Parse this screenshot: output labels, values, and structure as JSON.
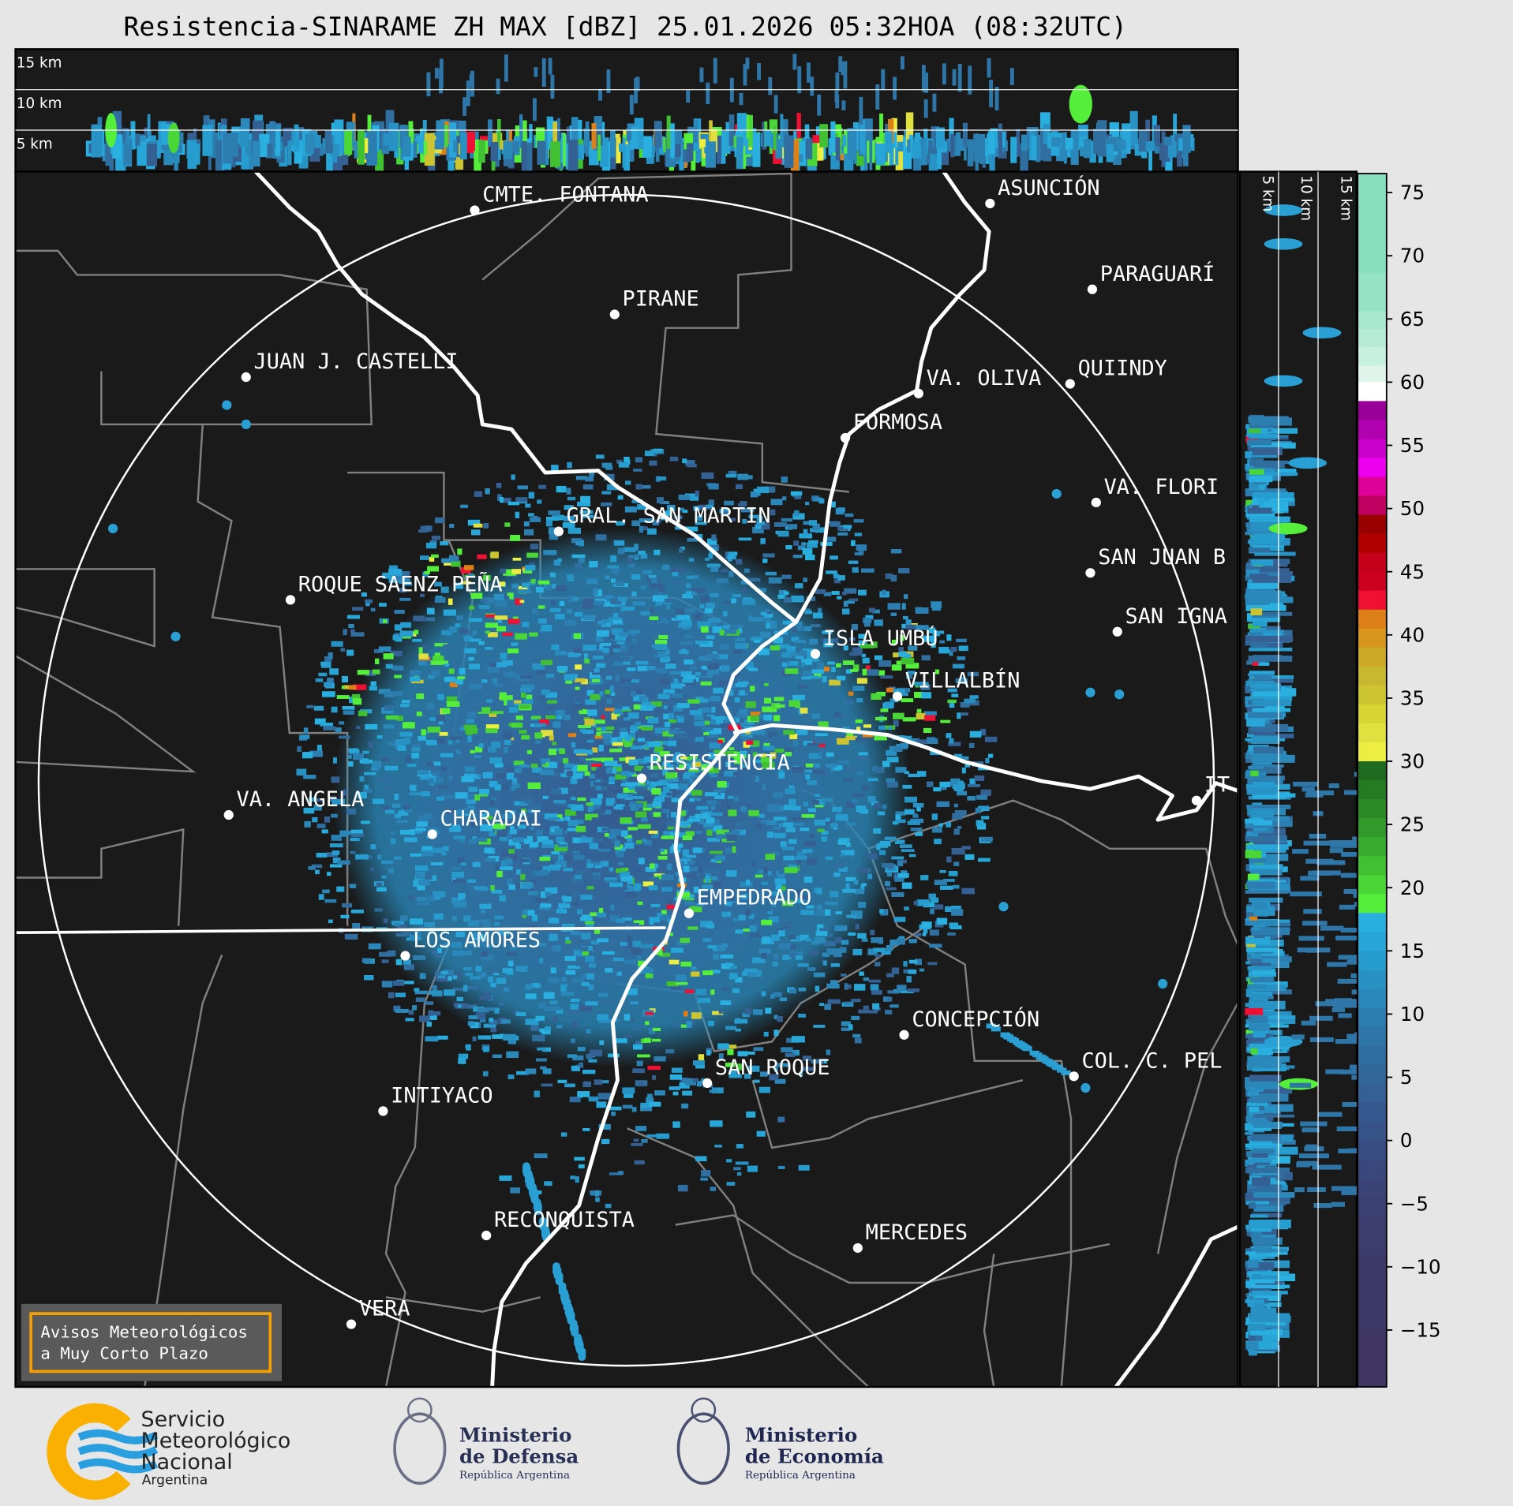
{
  "title": "Resistencia-SINARAME ZH MAX [dBZ] 25.01.2026 05:32HOA (08:32UTC)",
  "top_panel": {
    "labels": [
      "15 km",
      "10 km",
      "5 km"
    ]
  },
  "side_panel": {
    "labels": [
      "5 km",
      "10 km",
      "15 km"
    ]
  },
  "map": {
    "background": "#1a1a1a",
    "cities": [
      "CMTE. FONTANA",
      "PIRANE",
      "JUAN J. CASTELLI",
      "ASUNCIÓN",
      "PARAGUARÍ",
      "QUIINDY",
      "VA. OLIVA",
      "FORMOSA",
      "VA. FLORI",
      "SAN JUAN B",
      "SAN IGNA",
      "GRAL. SAN MARTIN",
      "ROQUE SAENZ PEÑA",
      "ISLA UMBÚ",
      "VILLALBÍN",
      "RESISTENCIA",
      "VA. ANGELA",
      "CHARADAI",
      "IT",
      "EMPEDRADO",
      "LOS AMORES",
      "CONCEPCIÓN",
      "COL. C. PEL",
      "SAN ROQUE",
      "INTIYACO",
      "RECONQUISTA",
      "MERCEDES",
      "VERA"
    ]
  },
  "colorbar": {
    "unit": "dBZ",
    "range": [
      -19.5,
      76.5
    ],
    "ticks": [
      "75",
      "70",
      "65",
      "60",
      "55",
      "50",
      "45",
      "40",
      "35",
      "30",
      "25",
      "20",
      "15",
      "10",
      "5",
      "0",
      "−5",
      "−10",
      "−15"
    ],
    "bands": [
      [
        68.6,
        76.5,
        "#88dfbf"
      ],
      [
        65.6,
        68.6,
        "#95e2c4"
      ],
      [
        64.2,
        65.6,
        "#a8e8cf"
      ],
      [
        62.8,
        64.2,
        "#b6ebd6"
      ],
      [
        61.3,
        62.8,
        "#c8f0e0"
      ],
      [
        60,
        61.3,
        "#dff5ec"
      ],
      [
        58.5,
        60,
        "#ffffff"
      ],
      [
        57,
        58.5,
        "#990099"
      ],
      [
        55.5,
        57,
        "#b000b0"
      ],
      [
        54,
        55.5,
        "#cc00cc"
      ],
      [
        52.5,
        54,
        "#ee00ee"
      ],
      [
        51,
        52.5,
        "#dd0099"
      ],
      [
        49.5,
        51,
        "#c00060"
      ],
      [
        48,
        49.5,
        "#990000"
      ],
      [
        46.5,
        48,
        "#b00000"
      ],
      [
        45,
        46.5,
        "#c4001a"
      ],
      [
        43.5,
        45,
        "#cc0020"
      ],
      [
        42,
        43.5,
        "#ee1133"
      ],
      [
        40.5,
        42,
        "#dd8018"
      ],
      [
        39,
        40.5,
        "#d8961e"
      ],
      [
        37.5,
        39,
        "#ccaa28"
      ],
      [
        36,
        37.5,
        "#c8b830"
      ],
      [
        34.5,
        36,
        "#ccc430"
      ],
      [
        33,
        34.5,
        "#d8d434"
      ],
      [
        31.5,
        33,
        "#e0e040"
      ],
      [
        30,
        31.5,
        "#eeee40"
      ],
      [
        28.5,
        30,
        "#1f6b1f"
      ],
      [
        27,
        28.5,
        "#257a22"
      ],
      [
        25.5,
        27,
        "#2c8a26"
      ],
      [
        24,
        25.5,
        "#329a2a"
      ],
      [
        22.5,
        24,
        "#39ab2e"
      ],
      [
        21,
        22.5,
        "#40c032"
      ],
      [
        19.5,
        21,
        "#4ad636"
      ],
      [
        18,
        19.5,
        "#55ee3a"
      ],
      [
        16.5,
        18,
        "#29b0e0"
      ],
      [
        15,
        16.5,
        "#28a6d8"
      ],
      [
        13.5,
        15,
        "#279ccf"
      ],
      [
        12,
        13.5,
        "#2892c4"
      ],
      [
        10.5,
        12,
        "#2a88ba"
      ],
      [
        9,
        10.5,
        "#2c7eb0"
      ],
      [
        7.5,
        9,
        "#2e76a8"
      ],
      [
        6,
        7.5,
        "#306ea0"
      ],
      [
        4.5,
        6,
        "#32679a"
      ],
      [
        3,
        4.5,
        "#346094"
      ],
      [
        1.5,
        3,
        "#35598e"
      ],
      [
        0,
        1.5,
        "#375388"
      ],
      [
        -1.5,
        0,
        "#384d82"
      ],
      [
        -3,
        -1.5,
        "#39487c"
      ],
      [
        -4.5,
        -3,
        "#3a4477"
      ],
      [
        -6,
        -4.5,
        "#3b4072"
      ],
      [
        -9,
        -6,
        "#3c3d6e"
      ],
      [
        -12,
        -9,
        "#3d3a6a"
      ],
      [
        -15,
        -12,
        "#3e3866"
      ],
      [
        -19.5,
        -15,
        "#3f3663"
      ]
    ]
  },
  "warning_box": {
    "line1": "Avisos Meteorológicos",
    "line2": "a Muy Corto Plazo",
    "border_color": "#f5a000"
  },
  "logos": {
    "smn": {
      "line1": "Servicio",
      "line2": "Meteorológico",
      "line3": "Nacional",
      "line4": "Argentina"
    },
    "defensa": {
      "line1": "Ministerio",
      "line2": "de Defensa",
      "line3": "República Argentina"
    },
    "economia": {
      "line1": "Ministerio",
      "line2": "de Economía",
      "line3": "República Argentina"
    }
  }
}
